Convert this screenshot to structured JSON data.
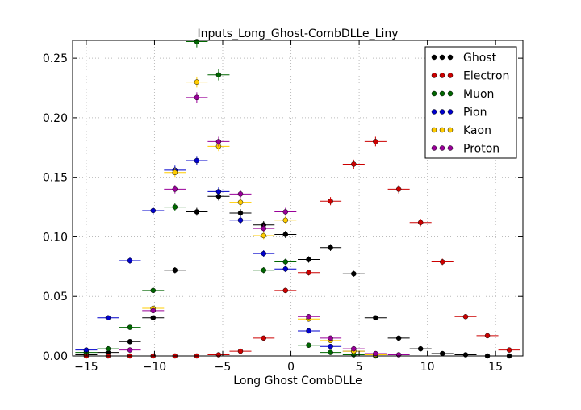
{
  "chart_data": {
    "type": "scatter",
    "title": "Inputs_Long_Ghost-CombDLLe_Liny",
    "xlabel": "Long Ghost CombDLLe",
    "ylabel": "",
    "xlim": [
      -16,
      17
    ],
    "ylim": [
      0,
      0.265
    ],
    "x_ticks": [
      -15,
      -10,
      -5,
      0,
      5,
      10,
      15
    ],
    "x_tick_labels": [
      "−15",
      "−10",
      "−5",
      "0",
      "5",
      "10",
      "15"
    ],
    "y_ticks": [
      0.0,
      0.05,
      0.1,
      0.15,
      0.2,
      0.25
    ],
    "y_tick_labels": [
      "0.00",
      "0.05",
      "0.10",
      "0.15",
      "0.20",
      "0.25"
    ],
    "grid": true,
    "legend_position": "top-right",
    "x_error_halfwidth": 0.8,
    "series": [
      {
        "name": "Ghost",
        "color": "#000000",
        "points": [
          {
            "x": -15.0,
            "y": 0.001
          },
          {
            "x": -13.4,
            "y": 0.003
          },
          {
            "x": -11.8,
            "y": 0.012
          },
          {
            "x": -10.1,
            "y": 0.032
          },
          {
            "x": -8.5,
            "y": 0.072
          },
          {
            "x": -6.9,
            "y": 0.121
          },
          {
            "x": -5.3,
            "y": 0.134
          },
          {
            "x": -3.7,
            "y": 0.12
          },
          {
            "x": -2.0,
            "y": 0.11
          },
          {
            "x": -0.4,
            "y": 0.102
          },
          {
            "x": 1.3,
            "y": 0.081
          },
          {
            "x": 2.9,
            "y": 0.091
          },
          {
            "x": 4.6,
            "y": 0.069
          },
          {
            "x": 6.2,
            "y": 0.032
          },
          {
            "x": 7.9,
            "y": 0.015
          },
          {
            "x": 9.5,
            "y": 0.006
          },
          {
            "x": 11.1,
            "y": 0.002
          },
          {
            "x": 12.8,
            "y": 0.001
          },
          {
            "x": 14.4,
            "y": 0.0
          },
          {
            "x": 16.0,
            "y": 0.0
          }
        ]
      },
      {
        "name": "Electron",
        "color": "#cc0000",
        "points": [
          {
            "x": -15.0,
            "y": 0.0
          },
          {
            "x": -13.4,
            "y": 0.0
          },
          {
            "x": -11.8,
            "y": 0.0
          },
          {
            "x": -10.1,
            "y": 0.0
          },
          {
            "x": -8.5,
            "y": 0.0
          },
          {
            "x": -6.9,
            "y": 0.0
          },
          {
            "x": -5.3,
            "y": 0.001
          },
          {
            "x": -3.7,
            "y": 0.004
          },
          {
            "x": -2.0,
            "y": 0.015
          },
          {
            "x": -0.4,
            "y": 0.055
          },
          {
            "x": 1.3,
            "y": 0.07
          },
          {
            "x": 2.9,
            "y": 0.13
          },
          {
            "x": 4.6,
            "y": 0.161
          },
          {
            "x": 6.2,
            "y": 0.18
          },
          {
            "x": 7.9,
            "y": 0.14
          },
          {
            "x": 9.5,
            "y": 0.112
          },
          {
            "x": 11.1,
            "y": 0.079
          },
          {
            "x": 12.8,
            "y": 0.033
          },
          {
            "x": 14.4,
            "y": 0.017
          },
          {
            "x": 16.0,
            "y": 0.005
          }
        ]
      },
      {
        "name": "Muon",
        "color": "#006600",
        "points": [
          {
            "x": -15.0,
            "y": 0.003
          },
          {
            "x": -13.4,
            "y": 0.006
          },
          {
            "x": -11.8,
            "y": 0.024
          },
          {
            "x": -10.1,
            "y": 0.055
          },
          {
            "x": -8.5,
            "y": 0.125
          },
          {
            "x": -6.9,
            "y": 0.264
          },
          {
            "x": -5.3,
            "y": 0.236
          },
          {
            "x": -2.0,
            "y": 0.072
          },
          {
            "x": -0.4,
            "y": 0.079
          },
          {
            "x": 1.3,
            "y": 0.009
          },
          {
            "x": 2.9,
            "y": 0.003
          },
          {
            "x": 4.6,
            "y": 0.001
          },
          {
            "x": 6.2,
            "y": 0.0
          }
        ]
      },
      {
        "name": "Pion",
        "color": "#0000cc",
        "points": [
          {
            "x": -15.0,
            "y": 0.005
          },
          {
            "x": -13.4,
            "y": 0.032
          },
          {
            "x": -11.8,
            "y": 0.08
          },
          {
            "x": -10.1,
            "y": 0.122
          },
          {
            "x": -8.5,
            "y": 0.156
          },
          {
            "x": -6.9,
            "y": 0.164
          },
          {
            "x": -5.3,
            "y": 0.138
          },
          {
            "x": -3.7,
            "y": 0.114
          },
          {
            "x": -2.0,
            "y": 0.086
          },
          {
            "x": -0.4,
            "y": 0.073
          },
          {
            "x": 1.3,
            "y": 0.021
          },
          {
            "x": 2.9,
            "y": 0.008
          },
          {
            "x": 4.6,
            "y": 0.004
          },
          {
            "x": 6.2,
            "y": 0.001
          }
        ]
      },
      {
        "name": "Kaon",
        "color": "#ffcc00",
        "points": [
          {
            "x": -10.1,
            "y": 0.04
          },
          {
            "x": -8.5,
            "y": 0.154
          },
          {
            "x": -6.9,
            "y": 0.23
          },
          {
            "x": -5.3,
            "y": 0.176
          },
          {
            "x": -3.7,
            "y": 0.129
          },
          {
            "x": -2.0,
            "y": 0.101
          },
          {
            "x": -0.4,
            "y": 0.114
          },
          {
            "x": 1.3,
            "y": 0.031
          },
          {
            "x": 2.9,
            "y": 0.013
          },
          {
            "x": 4.6,
            "y": 0.004
          },
          {
            "x": 6.2,
            "y": 0.001
          }
        ]
      },
      {
        "name": "Proton",
        "color": "#990099",
        "points": [
          {
            "x": -11.8,
            "y": 0.005
          },
          {
            "x": -10.1,
            "y": 0.038
          },
          {
            "x": -8.5,
            "y": 0.14
          },
          {
            "x": -6.9,
            "y": 0.217
          },
          {
            "x": -5.3,
            "y": 0.18
          },
          {
            "x": -3.7,
            "y": 0.136
          },
          {
            "x": -2.0,
            "y": 0.107
          },
          {
            "x": -0.4,
            "y": 0.121
          },
          {
            "x": 1.3,
            "y": 0.033
          },
          {
            "x": 2.9,
            "y": 0.015
          },
          {
            "x": 4.6,
            "y": 0.006
          },
          {
            "x": 6.2,
            "y": 0.002
          },
          {
            "x": 7.9,
            "y": 0.001
          }
        ]
      }
    ]
  }
}
